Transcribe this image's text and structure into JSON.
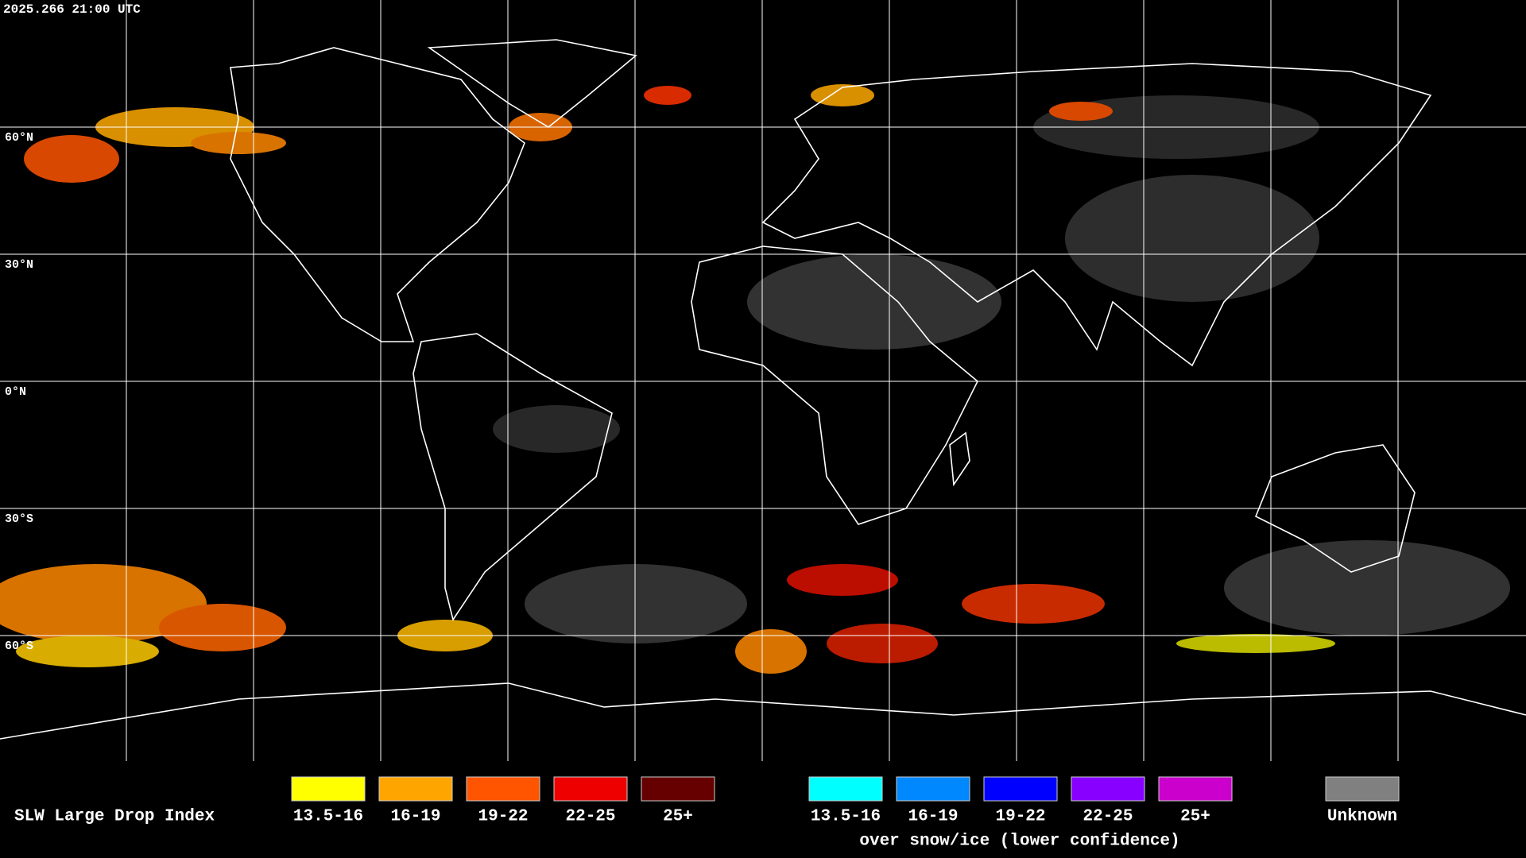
{
  "header": {
    "timestamp": "2025.266 21:00 UTC"
  },
  "map": {
    "lat_labels": [
      "60°N",
      "30°N",
      "0°N",
      "30°S",
      "60°S"
    ]
  },
  "legend": {
    "title": "SLW Large Drop Index",
    "liquid": [
      {
        "label": "13.5-16",
        "color": "#ffff00"
      },
      {
        "label": "16-19",
        "color": "#ffa500"
      },
      {
        "label": "19-22",
        "color": "#ff5500"
      },
      {
        "label": "22-25",
        "color": "#ee0000"
      },
      {
        "label": "25+",
        "color": "#660000"
      }
    ],
    "snow_ice": [
      {
        "label": "13.5-16",
        "color": "#00ffff"
      },
      {
        "label": "16-19",
        "color": "#0088ff"
      },
      {
        "label": "19-22",
        "color": "#0000ff"
      },
      {
        "label": "22-25",
        "color": "#8800ff"
      },
      {
        "label": "25+",
        "color": "#cc00cc"
      }
    ],
    "snow_ice_note": "over snow/ice (lower confidence)",
    "unknown": {
      "label": "Unknown",
      "color": "#808080"
    }
  }
}
